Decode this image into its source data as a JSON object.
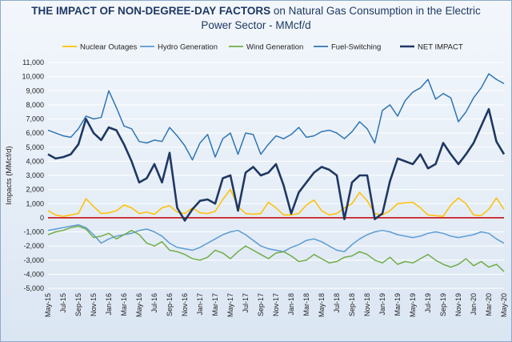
{
  "chart_data": {
    "type": "line",
    "title_bold": "THE IMPACT OF NON-DEGREE-DAY FACTORS",
    "title_rest": " on Natural Gas Consumption in the Electric",
    "title_line2": "Power Sector - MMcf/d",
    "ylabel": "Impacts (MMcf/d)",
    "xlabel": "",
    "ylim": [
      -5000,
      11000
    ],
    "y_ticks": [
      "-5,000",
      "-4,000",
      "-3,000",
      "-2,000",
      "-1,000",
      "0",
      "1,000",
      "2,000",
      "3,000",
      "4,000",
      "5,000",
      "6,000",
      "7,000",
      "8,000",
      "9,000",
      "10,000",
      "11,000"
    ],
    "y_tick_values": [
      -5000,
      -4000,
      -3000,
      -2000,
      -1000,
      0,
      1000,
      2000,
      3000,
      4000,
      5000,
      6000,
      7000,
      8000,
      9000,
      10000,
      11000
    ],
    "x_ticks": [
      "May-15",
      "Jul-15",
      "Sep-15",
      "Nov-15",
      "Jan-16",
      "Mar-16",
      "May-16",
      "Jul-16",
      "Sep-16",
      "Nov-16",
      "Jan-17",
      "Mar-17",
      "May-17",
      "Jul-17",
      "Sep-17",
      "Nov-17",
      "Jan-18",
      "Mar-18",
      "May-18",
      "Jul-18",
      "Sep-18",
      "Nov-18",
      "Jan-19",
      "Mar-19",
      "May-19",
      "Jul-19",
      "Sep-19",
      "Nov-19",
      "Jan-20",
      "Mar-20",
      "May-20"
    ],
    "x_tick_month_index": [
      0,
      2,
      4,
      6,
      8,
      10,
      12,
      14,
      16,
      18,
      20,
      22,
      24,
      26,
      28,
      30,
      32,
      34,
      36,
      38,
      40,
      42,
      44,
      46,
      48,
      50,
      52,
      54,
      56,
      58,
      60
    ],
    "x_range_months": [
      0,
      60
    ],
    "grid": true,
    "zero_line_color": "#c00000",
    "legend_position": "top",
    "series": [
      {
        "name": "Nuclear Outages",
        "color": "#ffc000",
        "x": [
          0,
          1,
          2,
          3,
          4,
          5,
          6,
          7,
          8,
          9,
          10,
          11,
          12,
          13,
          14,
          15,
          16,
          17,
          18,
          19,
          20,
          21,
          22,
          23,
          24,
          25,
          26,
          27,
          28,
          29,
          30,
          31,
          32,
          33,
          34,
          35,
          36,
          37,
          38,
          39,
          40,
          41,
          42,
          43,
          44,
          45,
          46,
          47,
          48,
          49,
          50,
          51,
          52,
          53,
          54,
          55,
          56,
          57,
          58,
          59,
          60
        ],
        "values": [
          500,
          200,
          100,
          200,
          300,
          1350,
          800,
          300,
          350,
          500,
          900,
          700,
          300,
          400,
          250,
          700,
          850,
          400,
          300,
          700,
          350,
          300,
          450,
          1300,
          2000,
          800,
          300,
          250,
          300,
          1100,
          700,
          200,
          200,
          300,
          900,
          1250,
          500,
          200,
          300,
          700,
          1000,
          1800,
          1200,
          300,
          200,
          500,
          1000,
          1050,
          1100,
          700,
          200,
          150,
          100,
          900,
          1400,
          1000,
          200,
          150,
          600,
          1400,
          600
        ]
      },
      {
        "name": "Hydro Generation",
        "color": "#5b9bd5",
        "x": [
          0,
          1,
          2,
          3,
          4,
          5,
          6,
          7,
          8,
          9,
          10,
          11,
          12,
          13,
          14,
          15,
          16,
          17,
          18,
          19,
          20,
          21,
          22,
          23,
          24,
          25,
          26,
          27,
          28,
          29,
          30,
          31,
          32,
          33,
          34,
          35,
          36,
          37,
          38,
          39,
          40,
          41,
          42,
          43,
          44,
          45,
          46,
          47,
          48,
          49,
          50,
          51,
          52,
          53,
          54,
          55,
          56,
          57,
          58,
          59,
          60
        ],
        "values": [
          -900,
          -800,
          -700,
          -600,
          -500,
          -700,
          -1200,
          -1800,
          -1500,
          -1300,
          -1200,
          -1100,
          -900,
          -800,
          -1000,
          -1300,
          -1800,
          -2100,
          -2200,
          -2300,
          -2100,
          -1800,
          -1500,
          -1200,
          -1000,
          -900,
          -1200,
          -1600,
          -2000,
          -2200,
          -2300,
          -2400,
          -2100,
          -1900,
          -1600,
          -1500,
          -1700,
          -2000,
          -2300,
          -2400,
          -1900,
          -1500,
          -1200,
          -1000,
          -900,
          -1000,
          -1200,
          -1300,
          -1400,
          -1300,
          -1100,
          -1000,
          -1100,
          -1300,
          -1400,
          -1300,
          -1200,
          -1000,
          -1100,
          -1500,
          -1800
        ]
      },
      {
        "name": "Wind Generation",
        "color": "#70ad47",
        "x": [
          0,
          1,
          2,
          3,
          4,
          5,
          6,
          7,
          8,
          9,
          10,
          11,
          12,
          13,
          14,
          15,
          16,
          17,
          18,
          19,
          20,
          21,
          22,
          23,
          24,
          25,
          26,
          27,
          28,
          29,
          30,
          31,
          32,
          33,
          34,
          35,
          36,
          37,
          38,
          39,
          40,
          41,
          42,
          43,
          44,
          45,
          46,
          47,
          48,
          49,
          50,
          51,
          52,
          53,
          54,
          55,
          56,
          57,
          58,
          59,
          60
        ],
        "values": [
          -1200,
          -1000,
          -900,
          -700,
          -600,
          -800,
          -1400,
          -1300,
          -1100,
          -1500,
          -1200,
          -900,
          -1200,
          -1800,
          -2000,
          -1700,
          -2300,
          -2400,
          -2600,
          -2900,
          -3000,
          -2800,
          -2300,
          -2500,
          -2900,
          -2400,
          -2000,
          -2300,
          -2600,
          -2900,
          -2500,
          -2400,
          -2700,
          -3100,
          -3000,
          -2600,
          -2900,
          -3200,
          -3100,
          -2800,
          -2700,
          -2400,
          -2600,
          -3000,
          -3200,
          -2800,
          -3300,
          -3100,
          -3200,
          -2900,
          -2600,
          -3000,
          -3300,
          -3500,
          -3300,
          -2900,
          -3400,
          -3100,
          -3500,
          -3300,
          -3800
        ]
      },
      {
        "name": "Fuel-Switching",
        "color": "#2e75b6",
        "x": [
          0,
          1,
          2,
          3,
          4,
          5,
          6,
          7,
          8,
          9,
          10,
          11,
          12,
          13,
          14,
          15,
          16,
          17,
          18,
          19,
          20,
          21,
          22,
          23,
          24,
          25,
          26,
          27,
          28,
          29,
          30,
          31,
          32,
          33,
          34,
          35,
          36,
          37,
          38,
          39,
          40,
          41,
          42,
          43,
          44,
          45,
          46,
          47,
          48,
          49,
          50,
          51,
          52,
          53,
          54,
          55,
          56,
          57,
          58,
          59,
          60
        ],
        "values": [
          6200,
          6000,
          5800,
          5700,
          6300,
          7200,
          7000,
          7100,
          9000,
          7800,
          6500,
          6300,
          5400,
          5300,
          5500,
          5400,
          6400,
          5800,
          5100,
          4100,
          5300,
          5900,
          4300,
          5600,
          6000,
          4500,
          6000,
          5900,
          4500,
          5200,
          5800,
          5600,
          5900,
          6400,
          5700,
          5800,
          6100,
          6200,
          6000,
          5600,
          6100,
          6800,
          6300,
          5300,
          7600,
          8000,
          7200,
          8300,
          8900,
          9200,
          9800,
          8400,
          8800,
          8500,
          6800,
          7500,
          8500,
          9200,
          10200,
          9800,
          9500
        ]
      },
      {
        "name": "NET IMPACT",
        "color": "#1f3864",
        "x": [
          0,
          1,
          2,
          3,
          4,
          5,
          6,
          7,
          8,
          9,
          10,
          11,
          12,
          13,
          14,
          15,
          16,
          17,
          18,
          19,
          20,
          21,
          22,
          23,
          24,
          25,
          26,
          27,
          28,
          29,
          30,
          31,
          32,
          33,
          34,
          35,
          36,
          37,
          38,
          39,
          40,
          41,
          42,
          43,
          44,
          45,
          46,
          47,
          48,
          49,
          50,
          51,
          52,
          53,
          54,
          55,
          56,
          57,
          58,
          59,
          60
        ],
        "values": [
          4500,
          4200,
          4300,
          4500,
          5200,
          7000,
          6000,
          5500,
          6400,
          6200,
          5200,
          4000,
          2500,
          2800,
          3800,
          2500,
          4600,
          700,
          -200,
          600,
          1200,
          1300,
          1000,
          2800,
          3000,
          500,
          3200,
          3600,
          3000,
          3200,
          3800,
          2300,
          300,
          1800,
          2500,
          3200,
          3600,
          3400,
          3000,
          -100,
          2500,
          3000,
          3000,
          -100,
          300,
          2600,
          4200,
          4000,
          3800,
          4500,
          3500,
          3800,
          5300,
          4500,
          3800,
          4500,
          5300,
          6500,
          7700,
          5400,
          4500
        ]
      }
    ]
  }
}
